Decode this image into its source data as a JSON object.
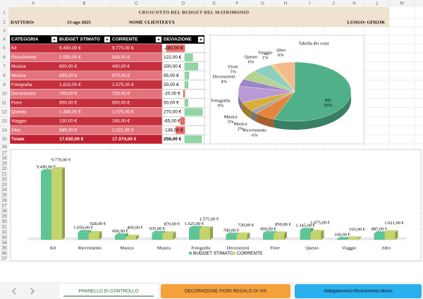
{
  "sheet": {
    "columns": [
      "A",
      "B",
      "C",
      "D",
      "E",
      "F",
      "G",
      "H",
      "I",
      "J",
      "K",
      "L",
      "M"
    ],
    "rows": [
      1,
      2,
      3,
      4,
      5,
      6,
      7,
      8,
      9,
      10,
      11,
      12,
      13,
      14,
      15,
      16,
      17,
      18,
      19,
      20,
      21,
      22,
      23,
      24,
      25,
      26,
      27,
      28,
      29,
      30,
      31,
      32,
      33,
      34,
      35,
      36,
      37
    ]
  },
  "header": {
    "title": "CRUSCOTTO DEL BUDGET DEL MATRIMONIO",
    "date_label": "DATTERO:",
    "date": "13-ago-2025",
    "client_label": "NOME CLIENTE:",
    "client": "XYX",
    "location": "LUOGO: GFHJJK"
  },
  "table": {
    "columns": [
      "CATEGORIA",
      "BUDGET STIMATO",
      "CORRENTE",
      "DEVIAZIONE"
    ],
    "rows": [
      [
        "Kit",
        "9.490,00 €",
        "9.770,00 €",
        {
          "value": -280,
          "label": "-280,00 €"
        }
      ],
      [
        "Ricevimento",
        "1.050,00 €",
        "928,00 €",
        {
          "value": 122,
          "label": "122,00 €"
        }
      ],
      [
        "Musica",
        "600,00 €",
        "400,00 €",
        {
          "value": 200,
          "label": "200,00 €"
        }
      ],
      [
        "Musica",
        "935,00 €",
        "870,00 €",
        {
          "value": 65,
          "label": "65,00 €"
        }
      ],
      [
        "Fotografia",
        "1.625,00 €",
        "1.575,00 €",
        {
          "value": 50,
          "label": "50,00 €"
        }
      ],
      [
        "Decorazioni",
        "700,00 €",
        "720,00 €",
        {
          "value": -20,
          "label": "-20,00 €"
        }
      ],
      [
        "Fiore",
        "900,00 €",
        "850,00 €",
        {
          "value": 50,
          "label": "50,00 €"
        }
      ],
      [
        "Questo",
        "1.345,00 €",
        "1.075,00 €",
        {
          "value": 270,
          "label": "270,00 €"
        }
      ],
      [
        "Viaggio",
        "100,00 €",
        "165,00 €",
        {
          "value": -65,
          "label": "-65,00 €"
        }
      ],
      [
        "Altro",
        "885,00 €",
        "1.021,00 €",
        {
          "value": -136,
          "label": "-136,00 €"
        }
      ]
    ],
    "total": [
      "Totale",
      "17.630,00 €",
      "17.374,00 €",
      {
        "value": 256,
        "label": "256,00 €"
      }
    ]
  },
  "chart_data": [
    {
      "type": "pie",
      "title": "Tabella dei costi",
      "categories": [
        "Kit",
        "Ricevimento",
        "Musica",
        "Musica",
        "Fotografia",
        "Decorazioni",
        "Fiore",
        "Questo",
        "Viaggio",
        "Altro"
      ],
      "values": [
        56,
        6,
        2,
        5,
        9,
        4,
        5,
        6,
        1,
        6
      ],
      "value_labels": [
        "56%",
        "6%",
        "2%",
        "5%",
        "9%",
        "4%",
        "5%",
        "6%",
        "1%",
        "6%"
      ],
      "colors": [
        "#4fb08a",
        "#e6853e",
        "#a5a5a5",
        "#d9ad3c",
        "#b99ad4",
        "#9e86c8",
        "#b4d48f",
        "#8fcfc0",
        "#e8d27a",
        "#f4bb8c"
      ]
    },
    {
      "type": "bar",
      "categories": [
        "Kit",
        "Ricevimento",
        "Musica",
        "Musica",
        "Fotografia",
        "Decorazioni",
        "Fiore",
        "Questo",
        "Viaggio",
        "Altro"
      ],
      "series": [
        {
          "name": "BUDGET STIMATO",
          "color": "#5ec597",
          "values": [
            9490,
            1050,
            600,
            935,
            1625,
            700,
            900,
            1345,
            100,
            885
          ],
          "value_labels": [
            "9.490,00 €",
            "1.050,00 €",
            "600,00 €",
            "935,00 €",
            "1.625,00 €",
            "700,00 €",
            "900,00 €",
            "1.345,00 €",
            "100,00 €",
            "885,00 €"
          ]
        },
        {
          "name": "CORRENTE",
          "color": "#c3d46d",
          "values": [
            9770,
            928,
            400,
            870,
            1575,
            720,
            850,
            1075,
            165,
            1021
          ],
          "value_labels": [
            "9.770,00 €",
            "928,00 €",
            "400,00 €",
            "870,00 €",
            "1.575,00 €",
            "720,00 €",
            "850,00 €",
            "1.075,00 €",
            "165,00 €",
            "1.021,00 €"
          ]
        }
      ],
      "legend": "bottom"
    }
  ],
  "tabs": [
    "PANNELLO DI CONTROLLO",
    "DECORAZIONE FIORI REGALO DI VIA",
    "Abbigliamento-Ricevimento-Music"
  ]
}
